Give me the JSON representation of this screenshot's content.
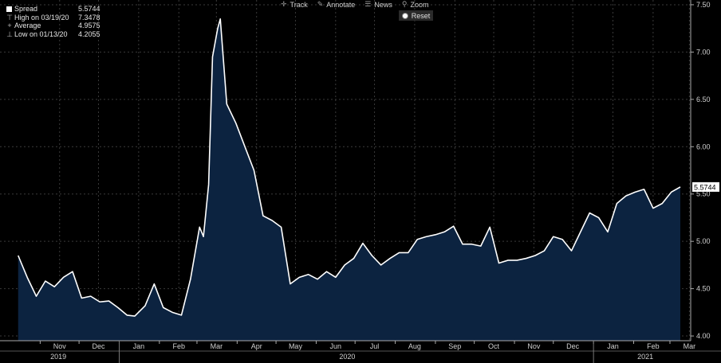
{
  "legend": {
    "items": [
      {
        "label": "Spread",
        "value": "5.5744"
      },
      {
        "label": "High on 03/19/20",
        "value": "7.3478"
      },
      {
        "label": "Average",
        "value": "4.9575"
      },
      {
        "label": "Low on 01/13/20",
        "value": "4.2055"
      }
    ]
  },
  "toolbar": {
    "track": "Track",
    "annotate": "Annotate",
    "news": "News",
    "zoom": "Zoom",
    "reset": "Reset"
  },
  "colors": {
    "line": "#ffffff",
    "fill": "#0c2340",
    "grid": "#3a3a3a",
    "last_label_bg": "#ffffff",
    "last_label_fg": "#000000"
  },
  "chart_data": {
    "type": "area",
    "ylim": [
      3.95,
      7.55
    ],
    "y_ticks": [
      "4.00",
      "4.50",
      "5.00",
      "5.50",
      "6.00",
      "6.50",
      "7.00",
      "7.50"
    ],
    "x_ticks": [
      "Nov",
      "Dec",
      "Jan",
      "Feb",
      "Mar",
      "Apr",
      "May",
      "Jun",
      "Jul",
      "Aug",
      "Sep",
      "Oct",
      "Nov",
      "Dec",
      "Jan",
      "Feb",
      "Mar"
    ],
    "year_labels": [
      "2019",
      "2020",
      "2021"
    ],
    "last_value_label": "5.5744",
    "grid": true,
    "x": [
      "2019-10-15",
      "2019-10-22",
      "2019-10-29",
      "2019-11-05",
      "2019-11-12",
      "2019-11-19",
      "2019-11-26",
      "2019-12-03",
      "2019-12-10",
      "2019-12-17",
      "2019-12-24",
      "2019-12-31",
      "2020-01-07",
      "2020-01-13",
      "2020-01-21",
      "2020-01-28",
      "2020-02-04",
      "2020-02-11",
      "2020-02-18",
      "2020-02-25",
      "2020-03-03",
      "2020-03-06",
      "2020-03-10",
      "2020-03-13",
      "2020-03-17",
      "2020-03-19",
      "2020-03-24",
      "2020-03-31",
      "2020-04-07",
      "2020-04-14",
      "2020-04-21",
      "2020-04-28",
      "2020-05-05",
      "2020-05-12",
      "2020-05-19",
      "2020-05-26",
      "2020-06-02",
      "2020-06-09",
      "2020-06-16",
      "2020-06-23",
      "2020-06-30",
      "2020-07-07",
      "2020-07-14",
      "2020-07-21",
      "2020-07-28",
      "2020-08-04",
      "2020-08-11",
      "2020-08-18",
      "2020-08-25",
      "2020-09-01",
      "2020-09-08",
      "2020-09-15",
      "2020-09-22",
      "2020-09-29",
      "2020-10-06",
      "2020-10-13",
      "2020-10-20",
      "2020-10-27",
      "2020-11-03",
      "2020-11-10",
      "2020-11-17",
      "2020-11-24",
      "2020-12-01",
      "2020-12-08",
      "2020-12-15",
      "2020-12-22",
      "2020-12-29",
      "2021-01-05",
      "2021-01-12",
      "2021-01-19",
      "2021-01-26",
      "2021-02-02",
      "2021-02-09",
      "2021-02-16",
      "2021-02-23",
      "2021-03-02",
      "2021-03-09"
    ],
    "series": [
      {
        "values": [
          4.85,
          4.62,
          4.42,
          4.58,
          4.52,
          4.62,
          4.68,
          4.4,
          4.42,
          4.36,
          4.37,
          4.3,
          4.22,
          4.21,
          4.32,
          4.55,
          4.3,
          4.25,
          4.22,
          4.6,
          5.15,
          5.05,
          5.6,
          6.95,
          7.25,
          7.35,
          6.45,
          6.25,
          6.0,
          5.75,
          5.27,
          5.22,
          5.15,
          4.55,
          4.62,
          4.65,
          4.6,
          4.68,
          4.62,
          4.75,
          4.82,
          4.98,
          4.85,
          4.75,
          4.82,
          4.88,
          4.88,
          5.02,
          5.05,
          5.07,
          5.1,
          5.16,
          4.97,
          4.97,
          4.95,
          5.15,
          4.77,
          4.8,
          4.8,
          4.82,
          4.85,
          4.9,
          5.05,
          5.02,
          4.9,
          5.1,
          5.3,
          5.25,
          5.1,
          5.4,
          5.48,
          5.52,
          5.55,
          5.35,
          5.4,
          5.52,
          5.5744
        ]
      }
    ]
  }
}
